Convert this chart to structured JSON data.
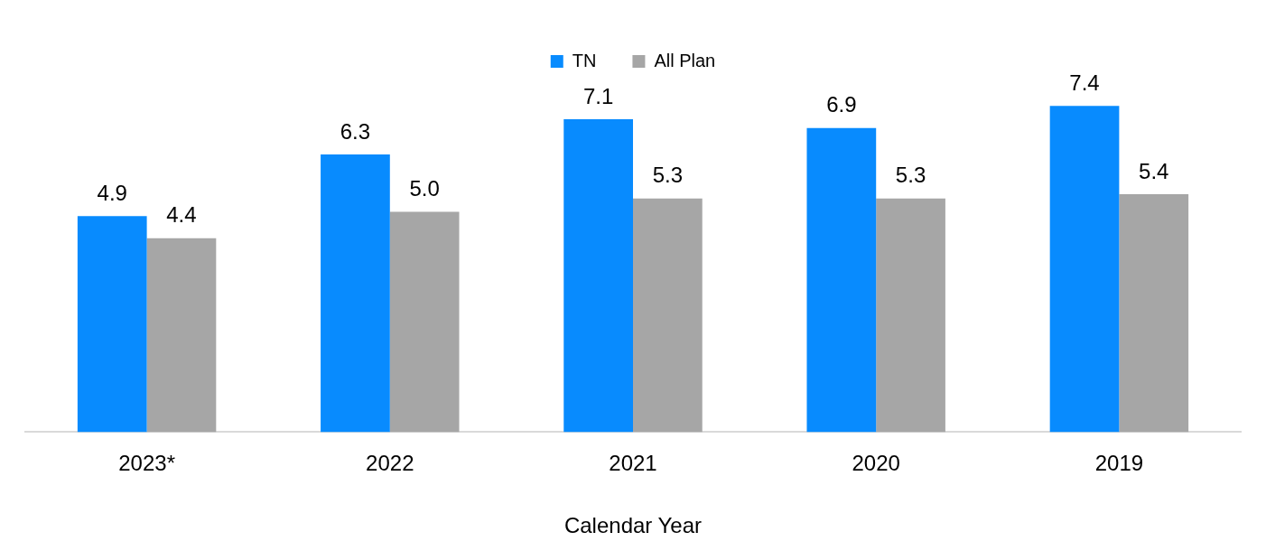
{
  "chart_data": {
    "type": "bar",
    "xlabel": "Calendar Year",
    "categories": [
      "2023*",
      "2022",
      "2021",
      "2020",
      "2019"
    ],
    "series": [
      {
        "name": "TN",
        "color": "#088bfe",
        "values": [
          4.9,
          6.3,
          7.1,
          6.9,
          7.4
        ],
        "value_labels": [
          "4.9",
          "6.3",
          "7.1",
          "6.9",
          "7.4"
        ]
      },
      {
        "name": "All Plan",
        "color": "#a6a6a6",
        "values": [
          4.4,
          5.0,
          5.3,
          5.3,
          5.4
        ],
        "value_labels": [
          "4.4",
          "5.0",
          "5.3",
          "5.3",
          "5.4"
        ]
      }
    ],
    "legend": "top",
    "tick_labels": "x"
  }
}
